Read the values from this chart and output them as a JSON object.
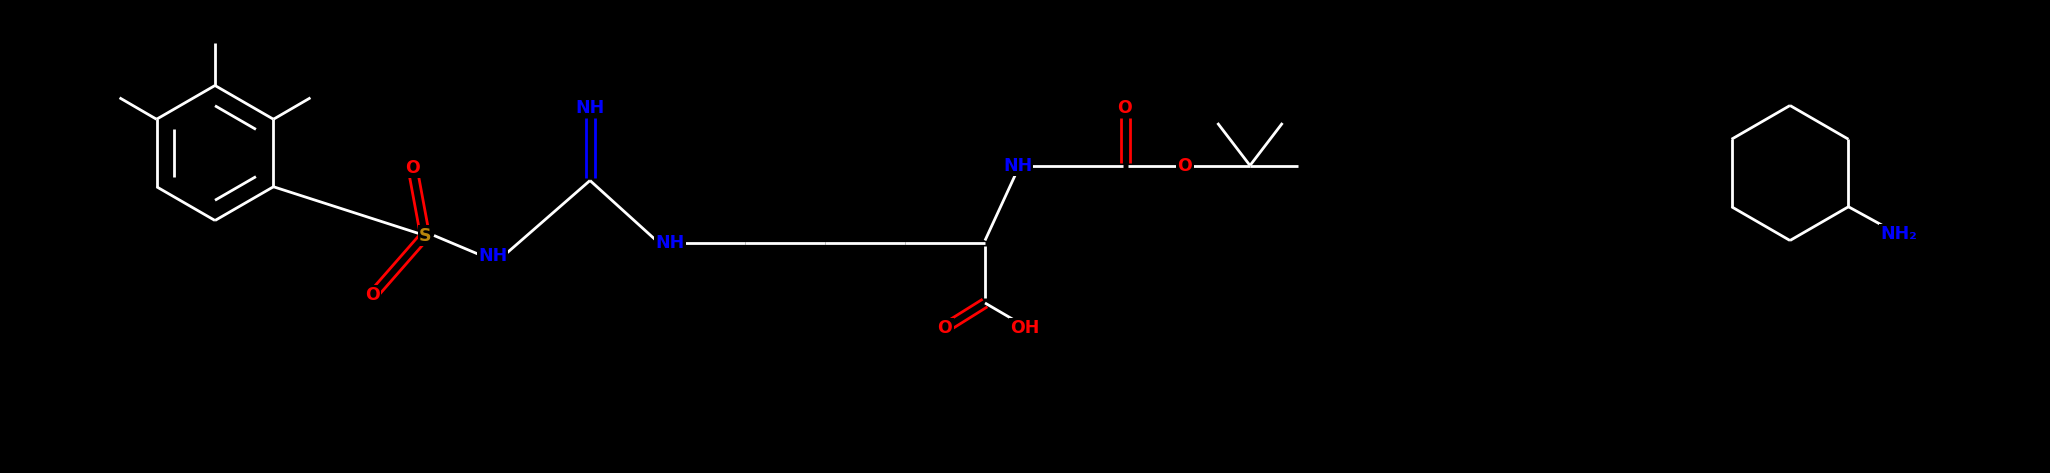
{
  "background_color": "#000000",
  "figure_width": 20.5,
  "figure_height": 4.73,
  "dpi": 100,
  "lw": 2.0,
  "atom_colors": {
    "N": "#0000ff",
    "O": "#ff0000",
    "S": "#b8860b"
  },
  "font_size": 12.5,
  "font_weight": "bold",
  "xlim": [
    0.0,
    41.0
  ],
  "ylim": [
    0.0,
    9.46
  ]
}
